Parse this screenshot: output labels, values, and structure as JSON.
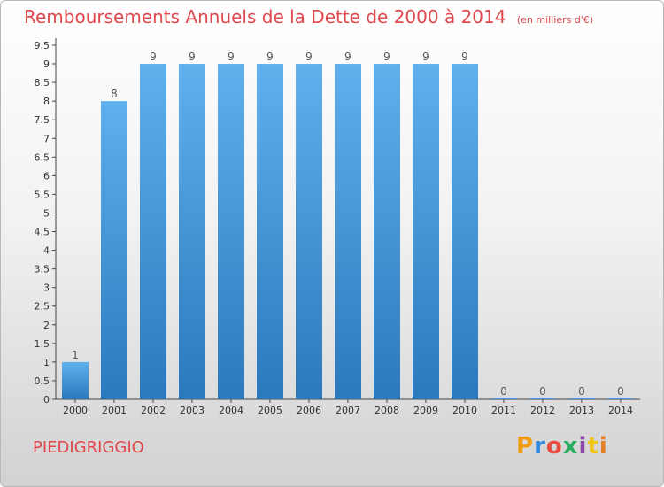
{
  "header": {
    "title": "Remboursements Annuels de la Dette de 2000 à 2014",
    "subtitle": "(en milliers d'€)"
  },
  "footer": {
    "place": "PIEDIGRIGGIO",
    "logo_text": "Proxiti"
  },
  "colors": {
    "title": "#e0484d",
    "bar_top": "#5fb0ec",
    "bar_bottom": "#2c78be",
    "logo": [
      "#f39c12",
      "#2e86de",
      "#e74c3c",
      "#27ae60",
      "#8e44ad",
      "#f1c40f",
      "#e67e22"
    ]
  },
  "chart_data": {
    "type": "bar",
    "categories": [
      "2000",
      "2001",
      "2002",
      "2003",
      "2004",
      "2005",
      "2006",
      "2007",
      "2008",
      "2009",
      "2010",
      "2011",
      "2012",
      "2013",
      "2014"
    ],
    "values": [
      1,
      8,
      9,
      9,
      9,
      9,
      9,
      9,
      9,
      9,
      9,
      0,
      0,
      0,
      0
    ],
    "title": "Remboursements Annuels de la Dette de 2000 à 2014",
    "ylim": [
      0,
      9.5
    ],
    "yticks": [
      "0",
      "0.5",
      "1",
      "1.5",
      "2",
      "2.5",
      "3",
      "3.5",
      "4",
      "4.5",
      "5",
      "5.5",
      "6",
      "6.5",
      "7",
      "7.5",
      "8",
      "8.5",
      "9",
      "9.5"
    ],
    "grid": false
  }
}
